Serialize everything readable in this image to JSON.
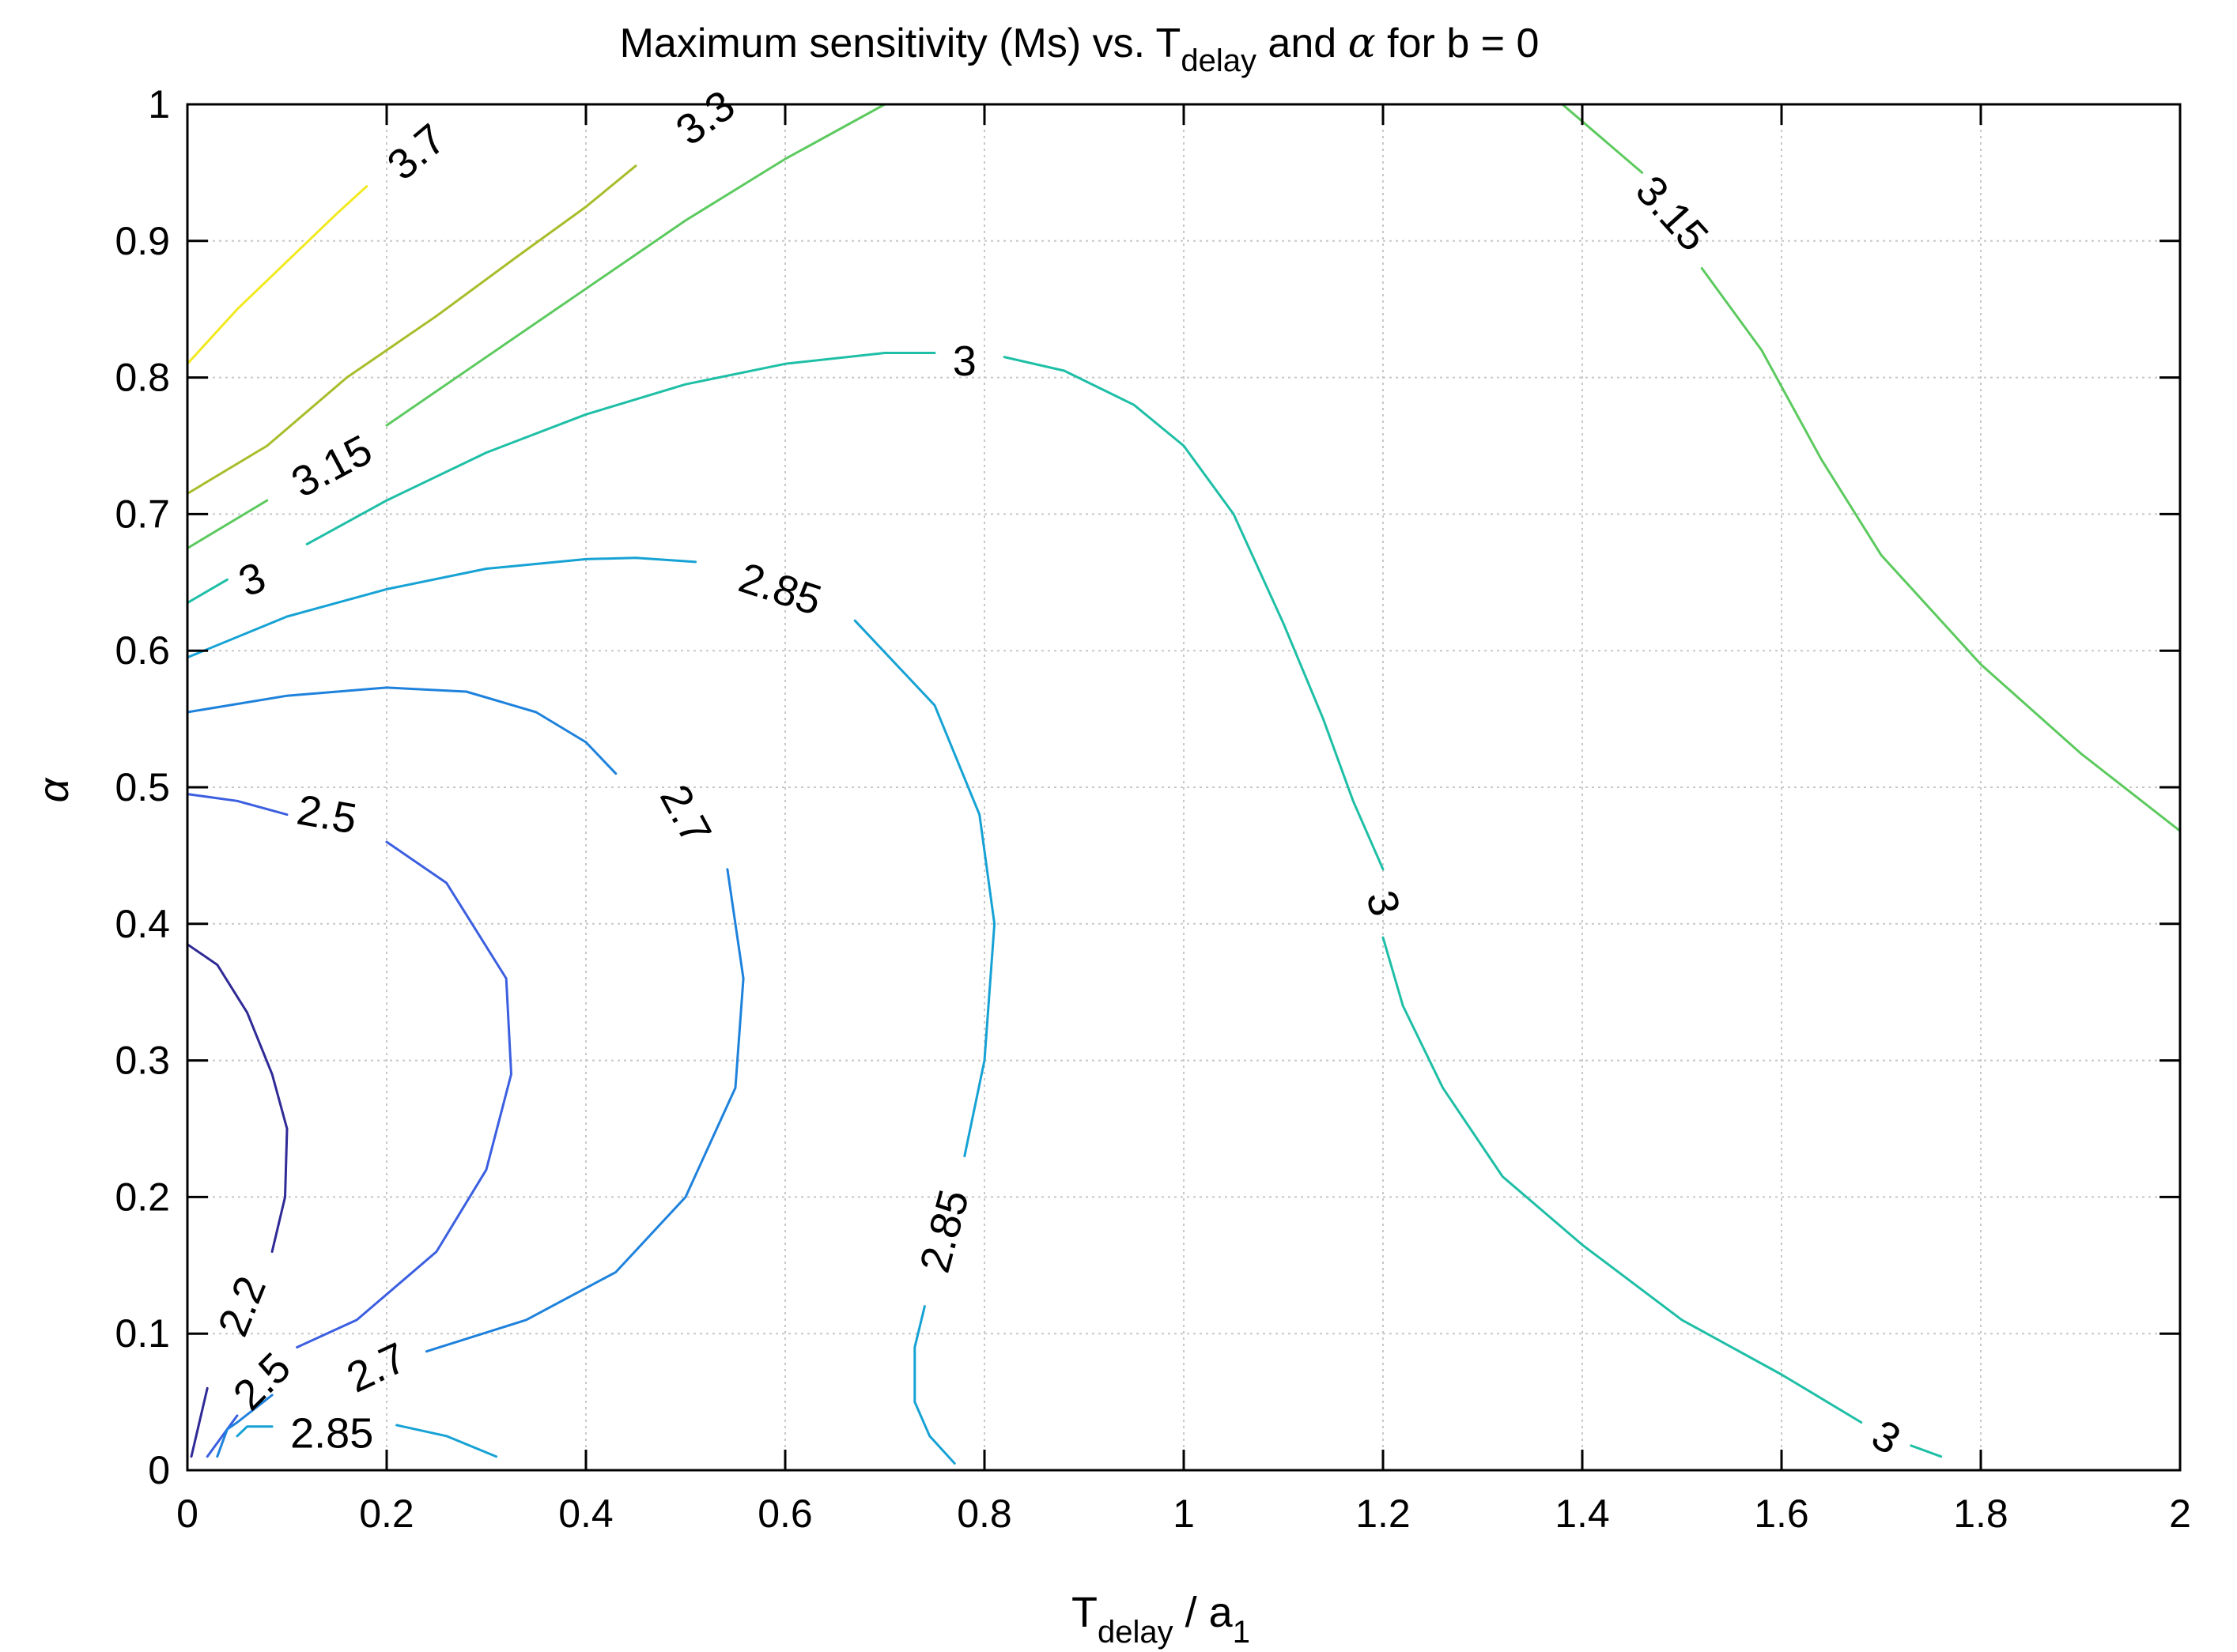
{
  "chart_data": {
    "type": "contour",
    "title": {
      "main": "Maximum sensitivity (Ms) vs. T",
      "sub": "delay",
      "suffix": " and ",
      "symbol": "α",
      "tail": " for b = 0"
    },
    "xlabel": {
      "main": "T",
      "sub": "delay",
      "mid": " / a",
      "sub2": "1"
    },
    "ylabel": "α",
    "xlim": [
      0,
      2
    ],
    "ylim": [
      0,
      1
    ],
    "xticks": [
      0,
      0.2,
      0.4,
      0.6,
      0.8,
      1,
      1.2,
      1.4,
      1.6,
      1.8,
      2
    ],
    "xtick_labels": [
      "0",
      "0.2",
      "0.4",
      "0.6",
      "0.8",
      "1",
      "1.2",
      "1.4",
      "1.6",
      "1.8",
      "2"
    ],
    "yticks": [
      0,
      0.1,
      0.2,
      0.3,
      0.4,
      0.5,
      0.6,
      0.7,
      0.8,
      0.9,
      1
    ],
    "ytick_labels": [
      "0",
      "0.1",
      "0.2",
      "0.3",
      "0.4",
      "0.5",
      "0.6",
      "0.7",
      "0.8",
      "0.9",
      "1"
    ],
    "grid": true,
    "levels": [
      {
        "level": 2.2,
        "label": "2.2",
        "color": "#2f2a96",
        "points": [
          [
            0.0,
            0.385
          ],
          [
            0.03,
            0.37
          ],
          [
            0.06,
            0.335
          ],
          [
            0.085,
            0.29
          ],
          [
            0.1,
            0.25
          ],
          [
            0.098,
            0.2
          ],
          [
            0.085,
            0.16
          ]
        ]
      },
      {
        "level": 2.2,
        "label": "2.2",
        "color": "#2f2a96",
        "points": [
          [
            0.02,
            0.06
          ],
          [
            0.012,
            0.035
          ],
          [
            0.004,
            0.01
          ]
        ]
      },
      {
        "level": 2.5,
        "label": "2.5",
        "color": "#3b5fe0",
        "points": [
          [
            0.0,
            0.495
          ],
          [
            0.05,
            0.49
          ],
          [
            0.1,
            0.48
          ]
        ]
      },
      {
        "level": 2.5,
        "label": "2.5",
        "color": "#3b5fe0",
        "points": [
          [
            0.2,
            0.46
          ],
          [
            0.26,
            0.43
          ],
          [
            0.32,
            0.36
          ],
          [
            0.325,
            0.29
          ],
          [
            0.3,
            0.22
          ],
          [
            0.25,
            0.16
          ],
          [
            0.17,
            0.11
          ],
          [
            0.11,
            0.09
          ]
        ]
      },
      {
        "level": 2.5,
        "label": "2.5",
        "color": "#3b5fe0",
        "points": [
          [
            0.05,
            0.04
          ],
          [
            0.035,
            0.025
          ],
          [
            0.02,
            0.01
          ]
        ]
      },
      {
        "level": 2.7,
        "label": "2.7",
        "color": "#1e82dc",
        "points": [
          [
            0.0,
            0.555
          ],
          [
            0.1,
            0.567
          ],
          [
            0.2,
            0.573
          ],
          [
            0.28,
            0.57
          ],
          [
            0.35,
            0.555
          ],
          [
            0.4,
            0.533
          ],
          [
            0.43,
            0.51
          ]
        ]
      },
      {
        "level": 2.7,
        "label": "2.7",
        "color": "#1e82dc",
        "points": [
          [
            0.542,
            0.44
          ],
          [
            0.558,
            0.36
          ],
          [
            0.55,
            0.28
          ],
          [
            0.5,
            0.2
          ],
          [
            0.43,
            0.145
          ],
          [
            0.34,
            0.11
          ],
          [
            0.24,
            0.087
          ]
        ]
      },
      {
        "level": 2.7,
        "label": "2.7",
        "color": "#1e82dc",
        "points": [
          [
            0.085,
            0.055
          ],
          [
            0.05,
            0.035
          ],
          [
            0.04,
            0.03
          ],
          [
            0.035,
            0.02
          ],
          [
            0.03,
            0.01
          ]
        ]
      },
      {
        "level": 2.85,
        "label": "2.85",
        "color": "#16a2d4",
        "points": [
          [
            0.0,
            0.595
          ],
          [
            0.1,
            0.625
          ],
          [
            0.2,
            0.645
          ],
          [
            0.3,
            0.66
          ],
          [
            0.4,
            0.667
          ],
          [
            0.45,
            0.668
          ],
          [
            0.51,
            0.665
          ]
        ]
      },
      {
        "level": 2.85,
        "label": "2.85",
        "color": "#16a2d4",
        "points": [
          [
            0.67,
            0.622
          ],
          [
            0.75,
            0.56
          ],
          [
            0.795,
            0.48
          ],
          [
            0.81,
            0.4
          ],
          [
            0.8,
            0.3
          ],
          [
            0.78,
            0.23
          ]
        ]
      },
      {
        "level": 2.85,
        "label": "2.85",
        "color": "#16a2d4",
        "points": [
          [
            0.74,
            0.12
          ],
          [
            0.73,
            0.09
          ],
          [
            0.73,
            0.05
          ],
          [
            0.745,
            0.025
          ],
          [
            0.77,
            0.005
          ]
        ]
      },
      {
        "level": 2.85,
        "label": "2.85",
        "color": "#16a2d4",
        "points": [
          [
            0.05,
            0.025
          ],
          [
            0.06,
            0.032
          ],
          [
            0.085,
            0.032
          ]
        ]
      },
      {
        "level": 2.85,
        "label": "2.85",
        "color": "#16a2d4",
        "points": [
          [
            0.21,
            0.033
          ],
          [
            0.26,
            0.025
          ],
          [
            0.31,
            0.01
          ]
        ]
      },
      {
        "level": 3.0,
        "label": "3",
        "color": "#1ebfa6",
        "points": [
          [
            0.0,
            0.635
          ],
          [
            0.04,
            0.652
          ]
        ]
      },
      {
        "level": 3.0,
        "label": "3",
        "color": "#1ebfa6",
        "points": [
          [
            0.12,
            0.678
          ],
          [
            0.2,
            0.71
          ],
          [
            0.3,
            0.745
          ],
          [
            0.4,
            0.773
          ],
          [
            0.5,
            0.795
          ],
          [
            0.6,
            0.81
          ],
          [
            0.7,
            0.818
          ],
          [
            0.75,
            0.818
          ]
        ]
      },
      {
        "level": 3.0,
        "label": "3",
        "color": "#1ebfa6",
        "points": [
          [
            0.82,
            0.815
          ],
          [
            0.88,
            0.805
          ],
          [
            0.95,
            0.78
          ],
          [
            1.0,
            0.75
          ],
          [
            1.05,
            0.7
          ],
          [
            1.1,
            0.62
          ],
          [
            1.14,
            0.55
          ],
          [
            1.17,
            0.49
          ],
          [
            1.2,
            0.44
          ]
        ]
      },
      {
        "level": 3.0,
        "label": "3",
        "color": "#1ebfa6",
        "points": [
          [
            1.2,
            0.39
          ],
          [
            1.22,
            0.34
          ],
          [
            1.26,
            0.28
          ],
          [
            1.32,
            0.215
          ],
          [
            1.4,
            0.165
          ],
          [
            1.5,
            0.11
          ],
          [
            1.6,
            0.07
          ],
          [
            1.68,
            0.035
          ]
        ]
      },
      {
        "level": 3.0,
        "label": "3",
        "color": "#1ebfa6",
        "points": [
          [
            1.73,
            0.018
          ],
          [
            1.76,
            0.01
          ]
        ]
      },
      {
        "level": 3.15,
        "label": "3.15",
        "color": "#5cca5e",
        "points": [
          [
            0.0,
            0.675
          ],
          [
            0.08,
            0.71
          ]
        ]
      },
      {
        "level": 3.15,
        "label": "3.15",
        "color": "#5cca5e",
        "points": [
          [
            0.2,
            0.765
          ],
          [
            0.3,
            0.815
          ],
          [
            0.4,
            0.865
          ],
          [
            0.5,
            0.915
          ],
          [
            0.6,
            0.96
          ],
          [
            0.7,
            1.0
          ]
        ]
      },
      {
        "level": 3.15,
        "label": "3.15",
        "color": "#5cca5e",
        "points": [
          [
            1.38,
            1.0
          ],
          [
            1.42,
            0.975
          ],
          [
            1.46,
            0.95
          ]
        ]
      },
      {
        "level": 3.15,
        "label": "3.15",
        "color": "#5cca5e",
        "points": [
          [
            1.52,
            0.88
          ],
          [
            1.58,
            0.82
          ],
          [
            1.64,
            0.74
          ],
          [
            1.7,
            0.67
          ],
          [
            1.8,
            0.59
          ],
          [
            1.9,
            0.525
          ],
          [
            2.0,
            0.468
          ]
        ]
      },
      {
        "level": 3.3,
        "label": "3.3",
        "color": "#a9bd2b",
        "points": [
          [
            0.0,
            0.715
          ],
          [
            0.08,
            0.75
          ],
          [
            0.16,
            0.8
          ],
          [
            0.25,
            0.845
          ],
          [
            0.33,
            0.888
          ],
          [
            0.4,
            0.925
          ],
          [
            0.45,
            0.955
          ]
        ]
      },
      {
        "level": 3.7,
        "label": "3.7",
        "color": "#f2e91f",
        "points": [
          [
            0.0,
            0.81
          ],
          [
            0.05,
            0.85
          ],
          [
            0.1,
            0.885
          ],
          [
            0.15,
            0.92
          ],
          [
            0.18,
            0.94
          ]
        ]
      }
    ],
    "contour_labels": [
      {
        "text": "3.7",
        "x": 0.23,
        "y": 0.965,
        "angle": -40
      },
      {
        "text": "3.3",
        "x": 0.52,
        "y": 0.99,
        "angle": -36
      },
      {
        "text": "3.15",
        "x": 0.145,
        "y": 0.735,
        "angle": -28
      },
      {
        "text": "3.15",
        "x": 1.49,
        "y": 0.92,
        "angle": 48
      },
      {
        "text": "3",
        "x": 0.065,
        "y": 0.652,
        "angle": -22
      },
      {
        "text": "3",
        "x": 0.78,
        "y": 0.812,
        "angle": 0
      },
      {
        "text": "3",
        "x": 1.2,
        "y": 0.415,
        "angle": 75
      },
      {
        "text": "3",
        "x": 1.705,
        "y": 0.024,
        "angle": 30
      },
      {
        "text": "2.85",
        "x": 0.595,
        "y": 0.645,
        "angle": 18
      },
      {
        "text": "2.85",
        "x": 0.76,
        "y": 0.175,
        "angle": -75
      },
      {
        "text": "2.85",
        "x": 0.145,
        "y": 0.027,
        "angle": 0
      },
      {
        "text": "2.7",
        "x": 0.5,
        "y": 0.48,
        "angle": 62
      },
      {
        "text": "2.7",
        "x": 0.19,
        "y": 0.075,
        "angle": -25
      },
      {
        "text": "2.5",
        "x": 0.14,
        "y": 0.48,
        "angle": 10
      },
      {
        "text": "2.5",
        "x": 0.075,
        "y": 0.065,
        "angle": -45
      },
      {
        "text": "2.2",
        "x": 0.055,
        "y": 0.12,
        "angle": -68
      }
    ]
  },
  "colors": {
    "axis": "#000000",
    "grid": "#c8c8c8",
    "background": "#ffffff"
  }
}
